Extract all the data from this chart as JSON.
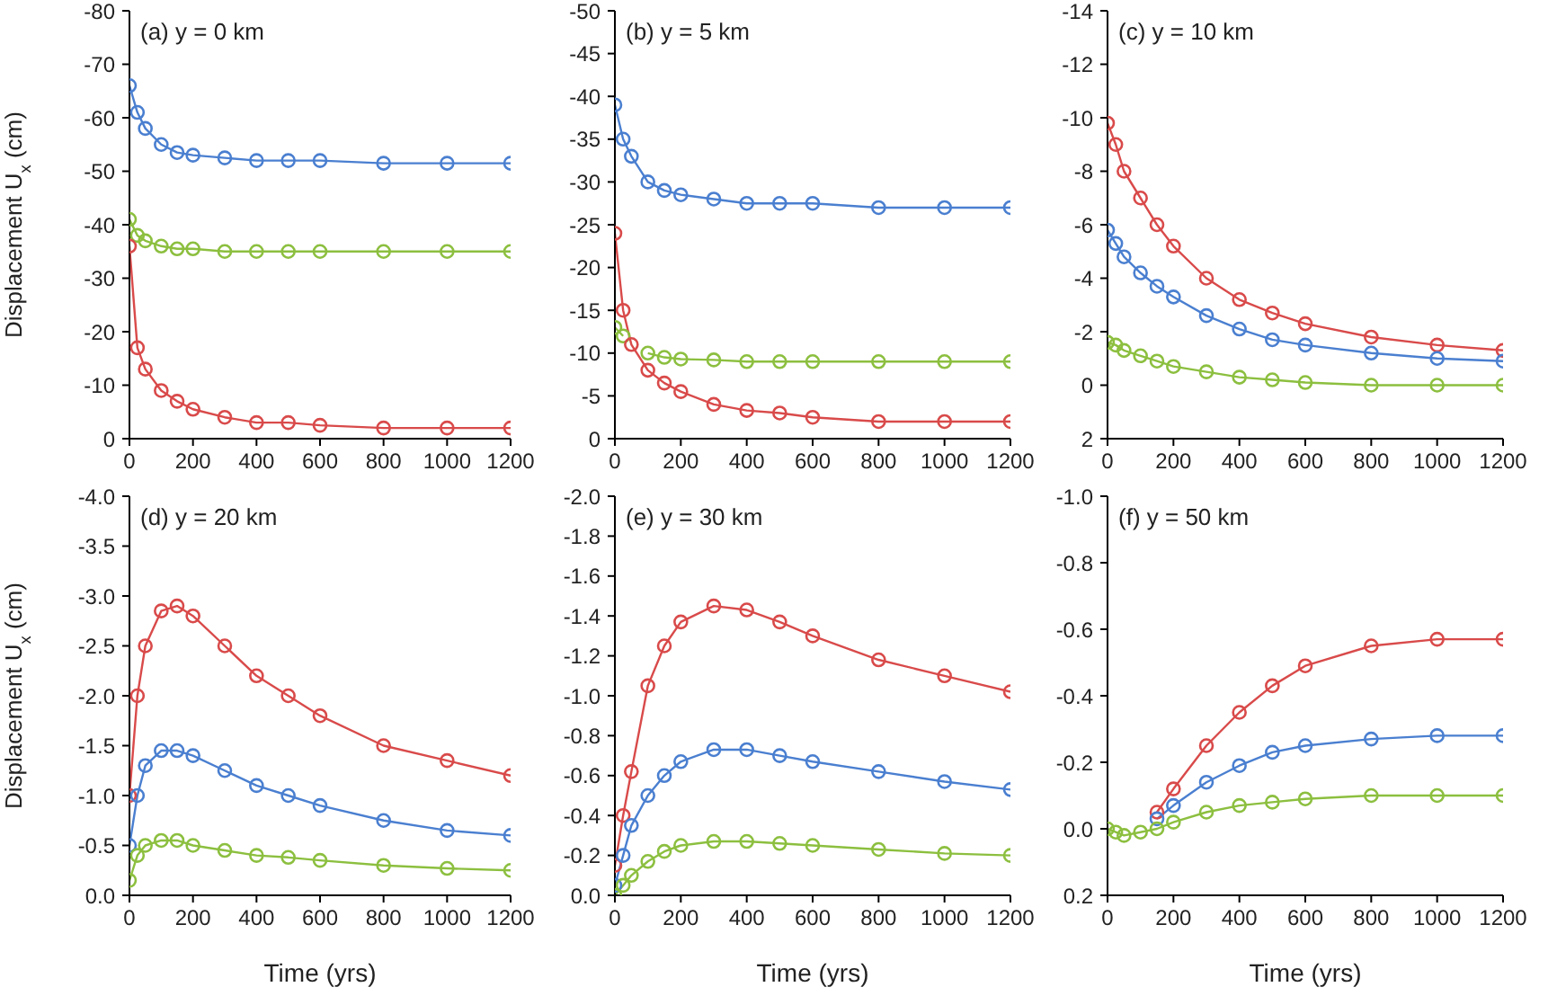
{
  "chart_data": [
    {
      "type": "line",
      "title": "(a) y = 0 km",
      "ylabel": "Displacement U$_{x}$ (cm)",
      "x": [
        0,
        25,
        50,
        100,
        150,
        200,
        300,
        400,
        500,
        600,
        800,
        1000,
        1200
      ],
      "xlim": [
        0,
        1200
      ],
      "xticks": [
        0,
        200,
        400,
        600,
        800,
        1000,
        1200
      ],
      "ylim": [
        0,
        -80
      ],
      "yticks": [
        0,
        -10,
        -20,
        -30,
        -40,
        -50,
        -60,
        -70,
        -80
      ],
      "marker": "circle",
      "line_style": "solid",
      "grid": false,
      "legend": false,
      "series": [
        {
          "color": "#4a7fd0",
          "values": [
            -66,
            -61,
            -58,
            -55,
            -53.5,
            -53,
            -52.5,
            -52,
            -52,
            -52,
            -51.5,
            -51.5,
            -51.5
          ]
        },
        {
          "color": "#8cbf3f",
          "values": [
            -41,
            -38,
            -37,
            -36,
            -35.5,
            -35.5,
            -35,
            -35,
            -35,
            -35,
            -35,
            -35,
            -35
          ]
        },
        {
          "color": "#d94a4a",
          "values": [
            -36,
            -17,
            -13,
            -9,
            -7,
            -5.5,
            -4,
            -3,
            -3,
            -2.5,
            -2,
            -2,
            -2
          ]
        }
      ]
    },
    {
      "type": "line",
      "title": "(b) y = 5 km",
      "x": [
        0,
        25,
        50,
        100,
        150,
        200,
        300,
        400,
        500,
        600,
        800,
        1000,
        1200
      ],
      "xlim": [
        0,
        1200
      ],
      "xticks": [
        0,
        200,
        400,
        600,
        800,
        1000,
        1200
      ],
      "ylim": [
        0,
        -50
      ],
      "yticks": [
        0,
        -5,
        -10,
        -15,
        -20,
        -25,
        -30,
        -35,
        -40,
        -45,
        -50
      ],
      "marker": "circle",
      "line_style": "solid",
      "grid": false,
      "legend": false,
      "series": [
        {
          "color": "#4a7fd0",
          "values": [
            -39,
            -35,
            -33,
            -30,
            -29,
            -28.5,
            -28,
            -27.5,
            -27.5,
            -27.5,
            -27,
            -27,
            -27
          ]
        },
        {
          "color": "#8cbf3f",
          "values": [
            -13,
            -12,
            null,
            -10,
            -9.5,
            -9.3,
            -9.2,
            -9,
            -9,
            -9,
            -9,
            -9,
            -9
          ]
        },
        {
          "color": "#d94a4a",
          "values": [
            -24,
            -15,
            -11,
            -8,
            -6.5,
            -5.5,
            -4,
            -3.3,
            -3,
            -2.5,
            -2,
            -2,
            -2
          ]
        }
      ]
    },
    {
      "type": "line",
      "title": "(c) y = 10 km",
      "x": [
        0,
        25,
        50,
        100,
        150,
        200,
        300,
        400,
        500,
        600,
        800,
        1000,
        1200
      ],
      "xlim": [
        0,
        1200
      ],
      "xticks": [
        0,
        200,
        400,
        600,
        800,
        1000,
        1200
      ],
      "ylim": [
        2,
        -14
      ],
      "yticks": [
        2,
        0,
        -2,
        -4,
        -6,
        -8,
        -10,
        -12,
        -14
      ],
      "marker": "circle",
      "line_style": "solid",
      "grid": false,
      "legend": false,
      "series": [
        {
          "color": "#d94a4a",
          "values": [
            -9.8,
            -9,
            -8,
            -7,
            -6,
            -5.2,
            -4,
            -3.2,
            -2.7,
            -2.3,
            -1.8,
            -1.5,
            -1.3
          ]
        },
        {
          "color": "#4a7fd0",
          "values": [
            -5.8,
            -5.3,
            -4.8,
            -4.2,
            -3.7,
            -3.3,
            -2.6,
            -2.1,
            -1.7,
            -1.5,
            -1.2,
            -1,
            -0.9
          ]
        },
        {
          "color": "#8cbf3f",
          "values": [
            -1.6,
            -1.5,
            -1.3,
            -1.1,
            -0.9,
            -0.7,
            -0.5,
            -0.3,
            -0.2,
            -0.1,
            0,
            0,
            0
          ]
        }
      ]
    },
    {
      "type": "line",
      "title": "(d) y = 20 km",
      "xlabel": "Time (yrs)",
      "ylabel": "Displacement U$_{x}$ (cm)",
      "x": [
        0,
        25,
        50,
        100,
        150,
        200,
        300,
        400,
        500,
        600,
        800,
        1000,
        1200
      ],
      "xlim": [
        0,
        1200
      ],
      "xticks": [
        0,
        200,
        400,
        600,
        800,
        1000,
        1200
      ],
      "ylim": [
        0,
        -4
      ],
      "yticks": [
        {
          "value": 0,
          "label": "0.0"
        },
        -0.5,
        {
          "value": -1,
          "label": "-1.0"
        },
        -1.5,
        {
          "value": -2,
          "label": "-2.0"
        },
        -2.5,
        {
          "value": -3,
          "label": "-3.0"
        },
        -3.5,
        {
          "value": -4,
          "label": "-4.0"
        }
      ],
      "marker": "circle",
      "line_style": "solid",
      "grid": false,
      "legend": false,
      "series": [
        {
          "color": "#d94a4a",
          "values": [
            -1,
            -2,
            -2.5,
            -2.85,
            -2.9,
            -2.8,
            -2.5,
            -2.2,
            -2,
            -1.8,
            -1.5,
            -1.35,
            -1.2
          ]
        },
        {
          "color": "#4a7fd0",
          "values": [
            -0.5,
            -1,
            -1.3,
            -1.45,
            -1.45,
            -1.4,
            -1.25,
            -1.1,
            -1,
            -0.9,
            -0.75,
            -0.65,
            -0.6
          ]
        },
        {
          "color": "#8cbf3f",
          "values": [
            -0.15,
            -0.4,
            -0.5,
            -0.55,
            -0.55,
            -0.5,
            -0.45,
            -0.4,
            -0.38,
            -0.35,
            -0.3,
            -0.27,
            -0.25
          ]
        }
      ]
    },
    {
      "type": "line",
      "title": "(e) y = 30 km",
      "xlabel": "Time (yrs)",
      "x": [
        0,
        25,
        50,
        100,
        150,
        200,
        300,
        400,
        500,
        600,
        800,
        1000,
        1200
      ],
      "xlim": [
        0,
        1200
      ],
      "xticks": [
        0,
        200,
        400,
        600,
        800,
        1000,
        1200
      ],
      "ylim": [
        0,
        -2
      ],
      "yticks": [
        {
          "value": 0,
          "label": "0.0"
        },
        -0.2,
        -0.4,
        -0.6,
        -0.8,
        {
          "value": -1,
          "label": "-1.0"
        },
        -1.2,
        -1.4,
        -1.6,
        -1.8,
        {
          "value": -2,
          "label": "-2.0"
        }
      ],
      "marker": "circle",
      "line_style": "solid",
      "grid": false,
      "legend": false,
      "series": [
        {
          "color": "#d94a4a",
          "values": [
            -0.15,
            -0.4,
            -0.62,
            -1.05,
            -1.25,
            -1.37,
            -1.45,
            -1.43,
            -1.37,
            -1.3,
            -1.18,
            -1.1,
            -1.02
          ]
        },
        {
          "color": "#4a7fd0",
          "values": [
            -0.05,
            -0.2,
            -0.35,
            -0.5,
            -0.6,
            -0.67,
            -0.73,
            -0.73,
            -0.7,
            -0.67,
            -0.62,
            -0.57,
            -0.53
          ]
        },
        {
          "color": "#8cbf3f",
          "values": [
            0,
            -0.05,
            -0.1,
            -0.17,
            -0.22,
            -0.25,
            -0.27,
            -0.27,
            -0.26,
            -0.25,
            -0.23,
            -0.21,
            -0.2
          ]
        }
      ]
    },
    {
      "type": "line",
      "title": "(f) y = 50 km",
      "xlabel": "Time (yrs)",
      "x": [
        0,
        25,
        50,
        100,
        150,
        200,
        300,
        400,
        500,
        600,
        800,
        1000,
        1200
      ],
      "xlim": [
        0,
        1200
      ],
      "xticks": [
        0,
        200,
        400,
        600,
        800,
        1000,
        1200
      ],
      "ylim": [
        0.2,
        -1
      ],
      "yticks": [
        0.2,
        {
          "value": 0,
          "label": "0.0"
        },
        -0.2,
        -0.4,
        -0.6,
        -0.8,
        {
          "value": -1,
          "label": "-1.0"
        }
      ],
      "marker": "circle",
      "line_style": "solid",
      "grid": false,
      "legend": false,
      "series": [
        {
          "color": "#d94a4a",
          "values": [
            null,
            null,
            null,
            null,
            -0.05,
            -0.12,
            -0.25,
            -0.35,
            -0.43,
            -0.49,
            -0.55,
            -0.57,
            -0.57
          ]
        },
        {
          "color": "#4a7fd0",
          "values": [
            null,
            null,
            null,
            null,
            -0.03,
            -0.07,
            -0.14,
            -0.19,
            -0.23,
            -0.25,
            -0.27,
            -0.28,
            -0.28
          ]
        },
        {
          "color": "#8cbf3f",
          "values": [
            0,
            0.01,
            0.02,
            0.01,
            0,
            -0.02,
            -0.05,
            -0.07,
            -0.08,
            -0.09,
            -0.1,
            -0.1,
            -0.1
          ]
        }
      ]
    }
  ]
}
